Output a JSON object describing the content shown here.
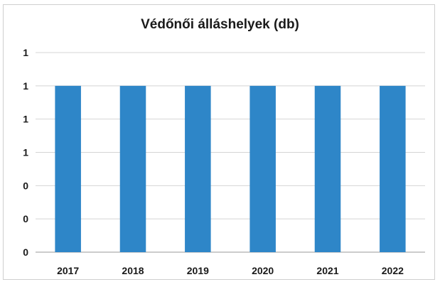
{
  "chart_data": {
    "type": "bar",
    "title": "Védőnői álláshelyek (db)",
    "categories": [
      "2017",
      "2018",
      "2019",
      "2020",
      "2021",
      "2022"
    ],
    "values": [
      1,
      1,
      1,
      1,
      1,
      1
    ],
    "ylim": [
      0,
      1.2
    ],
    "y_tick_values": [
      0,
      0.2,
      0.4,
      0.6,
      0.8,
      1.0,
      1.2
    ],
    "y_tick_labels": [
      "0",
      "0",
      "0",
      "1",
      "1",
      "1",
      "1"
    ],
    "xlabel": "",
    "ylabel": "",
    "grid": true,
    "legend": "none",
    "bar_color": "#2e86c8"
  }
}
